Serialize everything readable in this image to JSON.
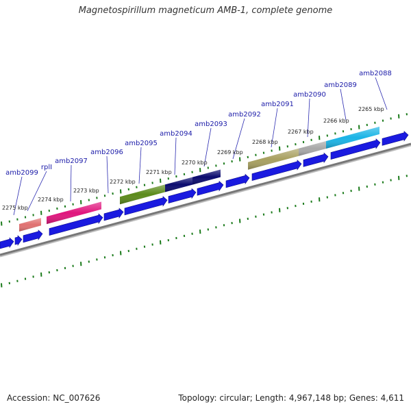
{
  "title": "Magnetospirillum magneticum AMB-1, complete genome",
  "footer": {
    "accession": "Accession: NC_007626",
    "summary": "Topology: circular; Length: 4,967,148 bp; Genes: 4,611"
  },
  "colors": {
    "backbone": "#777777",
    "ticks": "#1a7a1a",
    "cds": "#1a1ae0",
    "label_text": "#1a1aa8",
    "leader_line": "#2a2ab0"
  },
  "scale_labels": [
    "2275 kbp",
    "2274 kbp",
    "2273 kbp",
    "2272 kbp",
    "2271 kbp",
    "2270 kbp",
    "2269 kbp",
    "2268 kbp",
    "2267 kbp",
    "2266 kbp",
    "2265 kbp"
  ],
  "gene_labels": [
    "amb2099",
    "rplI",
    "amb2097",
    "amb2096",
    "amb2095",
    "amb2094",
    "amb2093",
    "amb2092",
    "amb2091",
    "amb2090",
    "amb2089",
    "amb2088"
  ],
  "gene_bars": [
    {
      "gene": "rplI",
      "color": "#e07070"
    },
    {
      "gene": "amb2097",
      "color": "#e0157d"
    },
    {
      "gene": "amb2095",
      "color": "#5b8a1a"
    },
    {
      "gene": "amb2094",
      "color": "#0a0a6e"
    },
    {
      "gene": "amb2093",
      "color": "#0a0a6e"
    },
    {
      "gene": "amb2091",
      "color": "#a8a060"
    },
    {
      "gene": "amb2090",
      "color": "#a8a8a8"
    },
    {
      "gene": "amb2089",
      "color": "#1ab4e6"
    }
  ]
}
